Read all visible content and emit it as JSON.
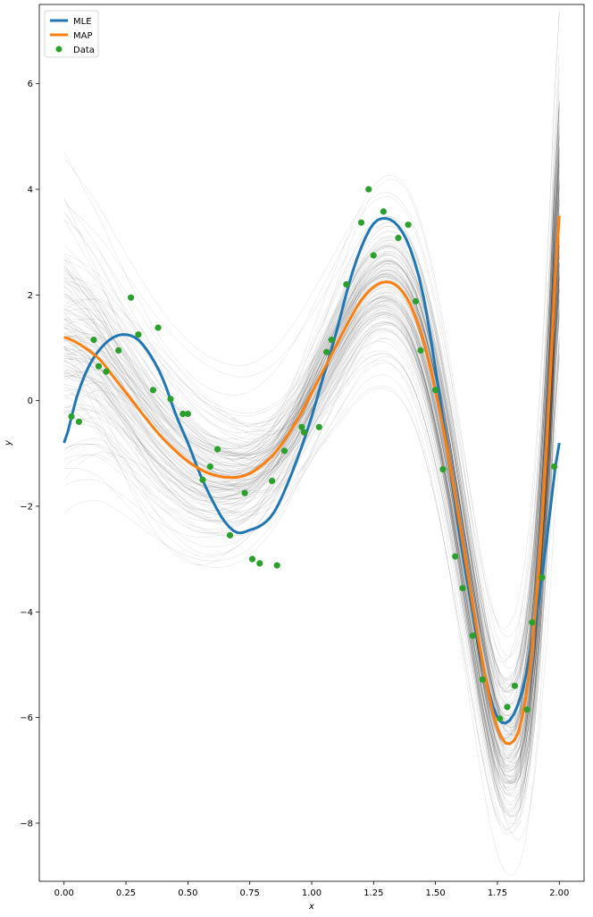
{
  "chart_data": {
    "type": "line",
    "title": "",
    "xlabel": "x",
    "ylabel": "y",
    "xlim": [
      -0.1,
      2.1
    ],
    "ylim": [
      -9.1,
      7.5
    ],
    "xticks": [
      0.0,
      0.25,
      0.5,
      0.75,
      1.0,
      1.25,
      1.5,
      1.75,
      2.0
    ],
    "xtick_labels": [
      "0.00",
      "0.25",
      "0.50",
      "0.75",
      "1.00",
      "1.25",
      "1.50",
      "1.75",
      "2.00"
    ],
    "yticks": [
      -8,
      -6,
      -4,
      -2,
      0,
      2,
      4,
      6
    ],
    "ytick_labels": [
      "−8",
      "−6",
      "−4",
      "−2",
      "0",
      "2",
      "4",
      "6"
    ],
    "legend_position": "top-left",
    "series": [
      {
        "name": "MLE",
        "color": "#1f77b4",
        "x": [
          0.0,
          0.05,
          0.1,
          0.15,
          0.2,
          0.25,
          0.3,
          0.35,
          0.4,
          0.45,
          0.5,
          0.55,
          0.6,
          0.65,
          0.7,
          0.75,
          0.8,
          0.85,
          0.9,
          0.95,
          1.0,
          1.05,
          1.1,
          1.15,
          1.2,
          1.25,
          1.3,
          1.35,
          1.4,
          1.45,
          1.5,
          1.55,
          1.6,
          1.65,
          1.7,
          1.75,
          1.8,
          1.85,
          1.9,
          1.95,
          2.0
        ],
        "y": [
          -0.8,
          0.05,
          0.65,
          1.0,
          1.2,
          1.25,
          1.15,
          0.85,
          0.4,
          -0.25,
          -0.8,
          -1.4,
          -1.9,
          -2.3,
          -2.5,
          -2.45,
          -2.35,
          -2.1,
          -1.6,
          -1.0,
          -0.3,
          0.5,
          1.3,
          2.2,
          2.9,
          3.35,
          3.45,
          3.3,
          2.85,
          2.0,
          0.6,
          -1.0,
          -2.6,
          -4.0,
          -5.2,
          -6.0,
          -6.05,
          -5.5,
          -4.3,
          -2.6,
          -0.8
        ]
      },
      {
        "name": "MAP",
        "color": "#ff7f0e",
        "x": [
          0.0,
          0.05,
          0.1,
          0.15,
          0.2,
          0.25,
          0.3,
          0.35,
          0.4,
          0.45,
          0.5,
          0.55,
          0.6,
          0.65,
          0.7,
          0.75,
          0.8,
          0.85,
          0.9,
          0.95,
          1.0,
          1.05,
          1.1,
          1.15,
          1.2,
          1.25,
          1.3,
          1.35,
          1.4,
          1.45,
          1.5,
          1.55,
          1.6,
          1.65,
          1.7,
          1.75,
          1.8,
          1.85,
          1.9,
          1.95,
          2.0
        ],
        "y": [
          1.2,
          1.1,
          0.95,
          0.75,
          0.45,
          0.15,
          -0.15,
          -0.45,
          -0.72,
          -0.95,
          -1.15,
          -1.3,
          -1.4,
          -1.45,
          -1.45,
          -1.38,
          -1.22,
          -1.0,
          -0.68,
          -0.3,
          0.15,
          0.6,
          1.05,
          1.5,
          1.9,
          2.15,
          2.25,
          2.15,
          1.8,
          1.15,
          0.2,
          -1.0,
          -2.4,
          -3.85,
          -5.2,
          -6.2,
          -6.5,
          -6.0,
          -4.2,
          -0.8,
          3.5
        ]
      }
    ],
    "samples": {
      "count": 150,
      "color": "#000000",
      "description": "posterior sample curves"
    },
    "scatter": {
      "name": "Data",
      "color": "#2ca02c",
      "x": [
        0.03,
        0.06,
        0.12,
        0.14,
        0.17,
        0.22,
        0.27,
        0.3,
        0.36,
        0.38,
        0.43,
        0.48,
        0.5,
        0.56,
        0.59,
        0.62,
        0.67,
        0.73,
        0.76,
        0.79,
        0.84,
        0.86,
        0.89,
        0.96,
        0.97,
        1.03,
        1.06,
        1.08,
        1.14,
        1.2,
        1.23,
        1.25,
        1.29,
        1.35,
        1.39,
        1.42,
        1.44,
        1.5,
        1.53,
        1.58,
        1.61,
        1.65,
        1.69,
        1.76,
        1.79,
        1.82,
        1.87,
        1.89,
        1.93,
        1.98
      ],
      "y": [
        -0.3,
        -0.4,
        1.15,
        0.65,
        0.55,
        0.95,
        1.95,
        1.25,
        0.2,
        1.38,
        0.03,
        -0.25,
        -0.25,
        -1.5,
        -1.25,
        -0.92,
        -2.55,
        -1.75,
        -3.0,
        -3.08,
        -1.52,
        -3.12,
        -0.95,
        -0.5,
        -0.6,
        -0.5,
        0.92,
        1.15,
        2.2,
        3.37,
        4.0,
        2.75,
        3.58,
        3.08,
        3.33,
        1.88,
        0.95,
        0.2,
        -1.3,
        -2.95,
        -3.55,
        -4.45,
        -5.28,
        -6.02,
        -5.8,
        -5.4,
        -5.85,
        -4.2,
        -3.35,
        -1.25
      ]
    }
  }
}
